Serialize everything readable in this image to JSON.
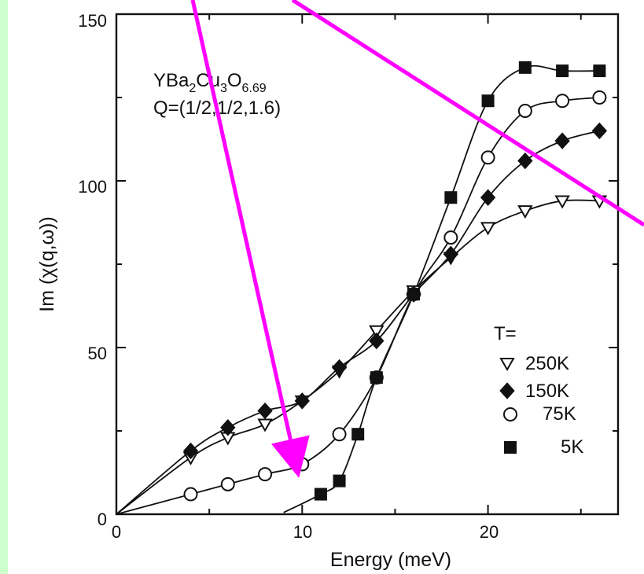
{
  "colors": {
    "page_background": "#ccffcc",
    "plot_background": "#ffffff",
    "ink": "#111111",
    "arrow": "#ff00ff"
  },
  "annotation": {
    "formula_base": "YBa",
    "formula_sub1": "2",
    "formula_mid": "Cu",
    "formula_sub2": "3",
    "formula_o": "O",
    "formula_sub3": "6.69",
    "q_vector": "Q=(1/2,1/2,1.6)"
  },
  "legend": {
    "title": "T=",
    "entries": [
      {
        "marker": "open-triangle-down",
        "label": "250K"
      },
      {
        "marker": "filled-diamond",
        "label": "150K"
      },
      {
        "marker": "open-circle",
        "label": "75K"
      },
      {
        "marker": "filled-square",
        "label": "5K"
      }
    ]
  },
  "chart_data": {
    "type": "scatter",
    "title": "",
    "xlabel": "Energy (meV)",
    "ylabel": "Im (χ(q,ω))",
    "xlim": [
      0,
      27
    ],
    "ylim": [
      0,
      150
    ],
    "x_ticks": [
      0,
      10,
      20
    ],
    "y_ticks": [
      0,
      50,
      100,
      150
    ],
    "grid": false,
    "legend_position": "bottom-right",
    "series": [
      {
        "name": "250K",
        "marker": "open-triangle-down",
        "x": [
          4,
          6,
          8,
          10,
          12,
          14,
          16,
          18,
          20,
          22,
          24,
          26
        ],
        "y": [
          17,
          23,
          27,
          34,
          43,
          55,
          67,
          77,
          86,
          91,
          94,
          94
        ]
      },
      {
        "name": "150K",
        "marker": "filled-diamond",
        "x": [
          4,
          6,
          8,
          10,
          12,
          14,
          16,
          18,
          20,
          22,
          24,
          26
        ],
        "y": [
          19,
          26,
          31,
          34,
          44,
          52,
          66,
          78,
          95,
          106,
          112,
          115
        ]
      },
      {
        "name": "75K",
        "marker": "open-circle",
        "x": [
          4,
          6,
          8,
          10,
          12,
          14,
          16,
          18,
          20,
          22,
          24,
          26
        ],
        "y": [
          6,
          9,
          12,
          15,
          24,
          41,
          66,
          83,
          107,
          121,
          124,
          125
        ]
      },
      {
        "name": "5K",
        "marker": "filled-square",
        "x": [
          11,
          12,
          13,
          14,
          16,
          18,
          20,
          22,
          24,
          26
        ],
        "y": [
          6,
          10,
          24,
          41,
          66,
          95,
          124,
          134,
          133,
          133
        ]
      }
    ]
  }
}
